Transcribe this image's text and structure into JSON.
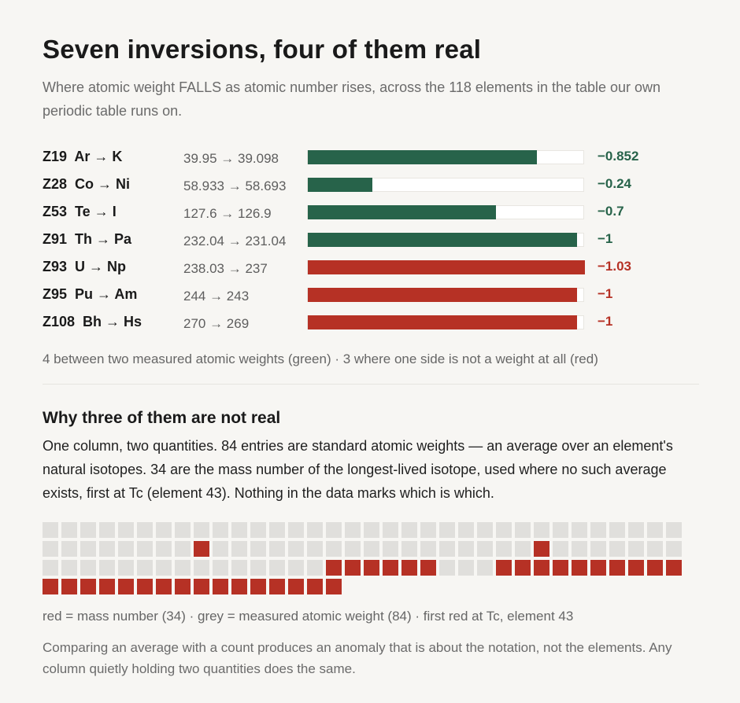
{
  "header": {
    "title": "Seven inversions, four of them real",
    "subtitle": "Where atomic weight FALLS as atomic number rises, across the 118 elements in the table our own periodic table runs on."
  },
  "colors": {
    "real": "#27634a",
    "not_real": "#b63125",
    "grey_cell": "#e0dfdc",
    "track": "#ffffff"
  },
  "chart_data": [
    {
      "type": "bar",
      "orientation": "horizontal",
      "categories": [
        "Z19  Ar → K",
        "Z28  Co → Ni",
        "Z53  Te → I",
        "Z91  Th → Pa",
        "Z93  U → Np",
        "Z95  Pu → Am",
        "Z108  Bh → Hs"
      ],
      "ranges": [
        "39.95 → 39.098",
        "58.933 → 58.693",
        "127.6 → 126.9",
        "232.04 → 231.04",
        "238.03 → 237",
        "244 → 243",
        "270 → 269"
      ],
      "values": [
        -0.852,
        -0.24,
        -0.7,
        -1,
        -1.03,
        -1,
        -1
      ],
      "value_labels": [
        "−0.852",
        "−0.24",
        "−0.7",
        "−1",
        "−1.03",
        "−1",
        "−1"
      ],
      "kinds": [
        "real",
        "real",
        "real",
        "real",
        "not_real",
        "not_real",
        "not_real"
      ],
      "xlim": [
        0,
        1.03
      ],
      "legend_note": "4 between two measured atomic weights (green) · 3 where one side is not a weight at all (red)"
    },
    {
      "type": "heatmap",
      "columns": 34,
      "total": 118,
      "counts": {
        "mass_number": 34,
        "atomic_weight": 84
      },
      "mass_number_elements": [
        43,
        61,
        84,
        85,
        86,
        87,
        88,
        89,
        93,
        94,
        95,
        96,
        97,
        98,
        99,
        100,
        101,
        102,
        103,
        104,
        105,
        106,
        107,
        108,
        109,
        110,
        111,
        112,
        113,
        114,
        115,
        116,
        117,
        118
      ],
      "note": "red = mass number (34) · grey = measured atomic weight (84) · first red at Tc, element 43"
    }
  ],
  "section": {
    "title": "Why three of them are not real",
    "body": "One column, two quantities. 84 entries are standard atomic weights — an average over an element's natural isotopes. 34 are the mass number of the longest-lived isotope, used where no such average exists, first at Tc (element 43). Nothing in the data marks which is which."
  },
  "footer": "Comparing an average with a count produces an anomaly that is about the notation, not the elements. Any column quietly holding two quantities does the same."
}
